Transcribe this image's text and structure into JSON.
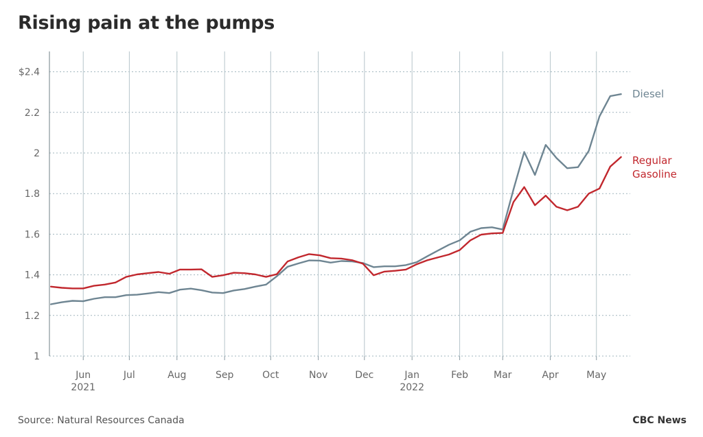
{
  "title": "Rising pain at the pumps",
  "source": "Source: Natural Resources Canada",
  "brand": "CBC News",
  "chart_data": {
    "type": "line",
    "title": "Rising pain at the pumps",
    "xlabel": "",
    "ylabel": "",
    "x_range": [
      "2021-05-10",
      "2022-05-23"
    ],
    "ylim": [
      1,
      2.5
    ],
    "y_ticks": [
      1,
      1.2,
      1.4,
      1.6,
      1.8,
      2,
      2.2,
      2.4
    ],
    "y_tick_labels": [
      "1",
      "1.2",
      "1.4",
      "1.6",
      "1.8",
      "2",
      "2.2",
      "$2.4"
    ],
    "x_ticks": [
      {
        "date": "2021-06-01",
        "label": "Jun",
        "year": "2021"
      },
      {
        "date": "2021-07-01",
        "label": "Jul",
        "year": ""
      },
      {
        "date": "2021-08-01",
        "label": "Aug",
        "year": ""
      },
      {
        "date": "2021-09-01",
        "label": "Sep",
        "year": ""
      },
      {
        "date": "2021-10-01",
        "label": "Oct",
        "year": ""
      },
      {
        "date": "2021-11-01",
        "label": "Nov",
        "year": ""
      },
      {
        "date": "2021-12-01",
        "label": "Dec",
        "year": ""
      },
      {
        "date": "2022-01-01",
        "label": "Jan",
        "year": "2022"
      },
      {
        "date": "2022-02-01",
        "label": "Feb",
        "year": ""
      },
      {
        "date": "2022-03-01",
        "label": "Mar",
        "year": ""
      },
      {
        "date": "2022-04-01",
        "label": "Apr",
        "year": ""
      },
      {
        "date": "2022-05-01",
        "label": "May",
        "year": ""
      }
    ],
    "grid": true,
    "legend_placement": "right end of lines",
    "series": [
      {
        "name": "Diesel",
        "color": "#6e8592",
        "x": [
          "2021-05-11",
          "2021-05-18",
          "2021-05-25",
          "2021-06-01",
          "2021-06-08",
          "2021-06-15",
          "2021-06-22",
          "2021-06-29",
          "2021-07-06",
          "2021-07-13",
          "2021-07-20",
          "2021-07-27",
          "2021-08-03",
          "2021-08-10",
          "2021-08-17",
          "2021-08-24",
          "2021-08-31",
          "2021-09-07",
          "2021-09-14",
          "2021-09-21",
          "2021-09-28",
          "2021-10-05",
          "2021-10-12",
          "2021-10-19",
          "2021-10-26",
          "2021-11-02",
          "2021-11-09",
          "2021-11-16",
          "2021-11-23",
          "2021-11-30",
          "2021-12-07",
          "2021-12-14",
          "2021-12-21",
          "2021-12-28",
          "2022-01-04",
          "2022-01-11",
          "2022-01-18",
          "2022-01-25",
          "2022-02-01",
          "2022-02-08",
          "2022-02-15",
          "2022-02-22",
          "2022-03-01",
          "2022-03-08",
          "2022-03-15",
          "2022-03-22",
          "2022-03-29",
          "2022-04-05",
          "2022-04-12",
          "2022-04-19",
          "2022-04-26",
          "2022-05-03",
          "2022-05-10",
          "2022-05-17"
        ],
        "values": [
          1.255,
          1.265,
          1.272,
          1.27,
          1.282,
          1.29,
          1.29,
          1.3,
          1.302,
          1.308,
          1.315,
          1.31,
          1.327,
          1.332,
          1.324,
          1.313,
          1.31,
          1.323,
          1.33,
          1.342,
          1.352,
          1.393,
          1.44,
          1.456,
          1.471,
          1.47,
          1.46,
          1.468,
          1.466,
          1.458,
          1.438,
          1.442,
          1.442,
          1.448,
          1.462,
          1.492,
          1.52,
          1.548,
          1.57,
          1.612,
          1.63,
          1.634,
          1.623,
          1.82,
          2.005,
          1.892,
          2.04,
          1.975,
          1.925,
          1.93,
          2.01,
          2.18,
          2.28,
          2.29
        ]
      },
      {
        "name": "Regular Gasoline",
        "color": "#c1272d",
        "x": [
          "2021-05-11",
          "2021-05-18",
          "2021-05-25",
          "2021-06-01",
          "2021-06-08",
          "2021-06-15",
          "2021-06-22",
          "2021-06-29",
          "2021-07-06",
          "2021-07-13",
          "2021-07-20",
          "2021-07-27",
          "2021-08-03",
          "2021-08-10",
          "2021-08-17",
          "2021-08-24",
          "2021-08-31",
          "2021-09-07",
          "2021-09-14",
          "2021-09-21",
          "2021-09-28",
          "2021-10-05",
          "2021-10-12",
          "2021-10-19",
          "2021-10-26",
          "2021-11-02",
          "2021-11-09",
          "2021-11-16",
          "2021-11-23",
          "2021-11-30",
          "2021-12-07",
          "2021-12-14",
          "2021-12-21",
          "2021-12-28",
          "2022-01-04",
          "2022-01-11",
          "2022-01-18",
          "2022-01-25",
          "2022-02-01",
          "2022-02-08",
          "2022-02-15",
          "2022-02-22",
          "2022-03-01",
          "2022-03-08",
          "2022-03-15",
          "2022-03-22",
          "2022-03-29",
          "2022-04-05",
          "2022-04-12",
          "2022-04-19",
          "2022-04-26",
          "2022-05-03",
          "2022-05-10",
          "2022-05-17"
        ],
        "values": [
          1.342,
          1.336,
          1.333,
          1.333,
          1.346,
          1.352,
          1.362,
          1.39,
          1.402,
          1.408,
          1.414,
          1.405,
          1.426,
          1.426,
          1.427,
          1.39,
          1.398,
          1.41,
          1.408,
          1.402,
          1.39,
          1.403,
          1.466,
          1.486,
          1.502,
          1.496,
          1.482,
          1.48,
          1.472,
          1.455,
          1.398,
          1.416,
          1.42,
          1.426,
          1.452,
          1.472,
          1.486,
          1.5,
          1.522,
          1.57,
          1.598,
          1.604,
          1.606,
          1.758,
          1.832,
          1.743,
          1.79,
          1.735,
          1.718,
          1.735,
          1.8,
          1.825,
          1.933,
          1.98
        ]
      }
    ]
  }
}
